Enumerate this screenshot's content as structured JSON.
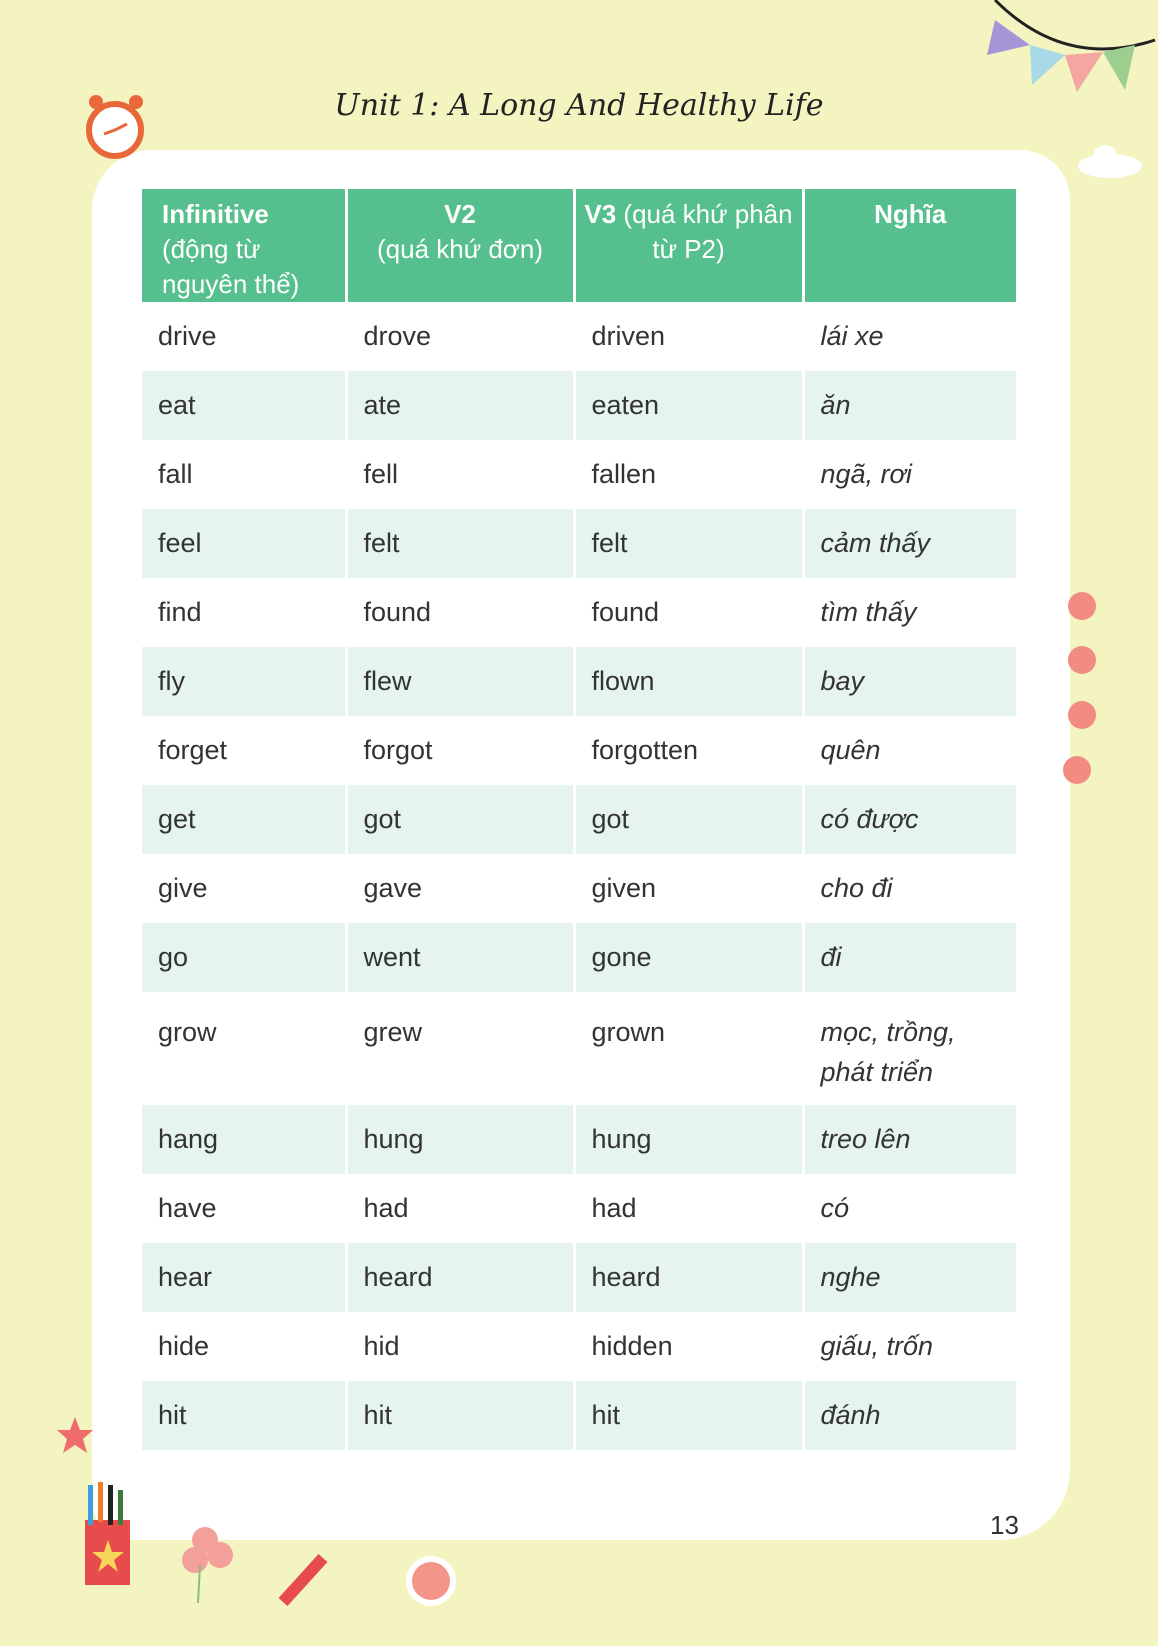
{
  "title": "Unit 1: A Long And Healthy Life",
  "headers": [
    {
      "bold": "Infinitive",
      "rest": " (động từ nguyên thể)"
    },
    {
      "bold": "V2",
      "rest": " (quá khứ đơn)"
    },
    {
      "bold": "V3",
      "rest": " (quá khứ phân từ P2)"
    },
    {
      "bold": "Nghĩa",
      "rest": ""
    }
  ],
  "rows": [
    [
      "drive",
      "drove",
      "driven",
      "lái xe"
    ],
    [
      "eat",
      "ate",
      "eaten",
      "ăn"
    ],
    [
      "fall",
      "fell",
      "fallen",
      "ngã, rơi"
    ],
    [
      "feel",
      "felt",
      "felt",
      "cảm thấy"
    ],
    [
      "find",
      "found",
      "found",
      "tìm thấy"
    ],
    [
      "fly",
      "flew",
      "flown",
      "bay"
    ],
    [
      "forget",
      "forgot",
      "forgotten",
      "quên"
    ],
    [
      "get",
      "got",
      "got",
      "có được"
    ],
    [
      "give",
      "gave",
      "given",
      "cho đi"
    ],
    [
      "go",
      "went",
      "gone",
      "đi"
    ],
    [
      "grow",
      "grew",
      "grown",
      "mọc, trồng, phát triển"
    ],
    [
      "hang",
      "hung",
      "hung",
      "treo lên"
    ],
    [
      "have",
      "had",
      "had",
      "có"
    ],
    [
      "hear",
      "heard",
      "heard",
      "nghe"
    ],
    [
      "hide",
      "hid",
      "hidden",
      "giấu, trốn"
    ],
    [
      "hit",
      "hit",
      "hit",
      "đánh"
    ]
  ],
  "page_number": "13",
  "colors": {
    "header": "#55bf8d",
    "alt_row": "#e6f4ef",
    "background": "#f3f4bf"
  }
}
